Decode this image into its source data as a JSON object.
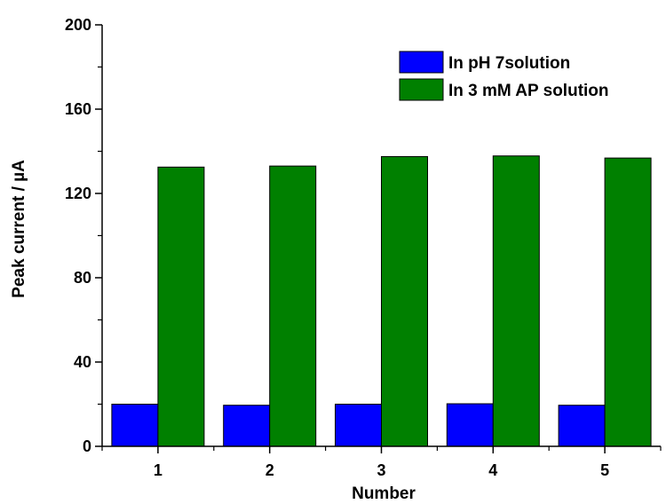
{
  "chart_data": {
    "type": "bar",
    "categories": [
      "1",
      "2",
      "3",
      "4",
      "5"
    ],
    "series": [
      {
        "name": "In pH 7solution",
        "color": "#0000ff",
        "values": [
          20,
          19.5,
          20,
          20.2,
          19.5
        ]
      },
      {
        "name": "In 3 mM AP solution",
        "color": "#008000",
        "values": [
          132.5,
          133,
          137.5,
          137.8,
          136.8
        ]
      }
    ],
    "xlabel": "Number",
    "ylabel": "Peak current / µA",
    "ylim": [
      0,
      200
    ],
    "yticks": [
      0,
      40,
      80,
      120,
      160,
      200
    ],
    "grid": false,
    "legend_position": "top-right"
  }
}
